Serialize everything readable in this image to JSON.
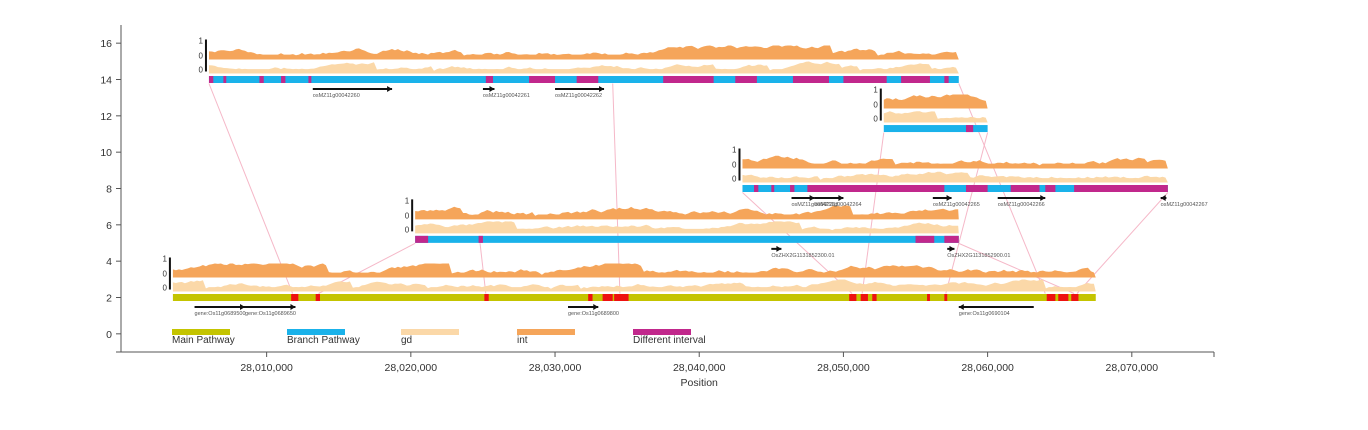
{
  "chart_data": {
    "type": "genome-pathway-track",
    "xlabel": "Position",
    "x_ticks": [
      28010000,
      28020000,
      28030000,
      28040000,
      28050000,
      28060000,
      28070000
    ],
    "x_tick_labels": [
      "28,010,000",
      "28,020,000",
      "28,030,000",
      "28,040,000",
      "28,050,000",
      "28,060,000",
      "28,070,000"
    ],
    "xlim": [
      27999900,
      28075700
    ],
    "y_ticks": [
      0,
      2,
      4,
      6,
      8,
      10,
      12,
      14,
      16
    ],
    "y_tick_labels": [
      "0",
      "2",
      "4",
      "6",
      "8",
      "10",
      "12",
      "14",
      "16"
    ],
    "ylim": [
      -1.0,
      17.0
    ],
    "colors": {
      "main": "#c4c400",
      "branch": "#1ab2ea",
      "gd": "#fbd8a8",
      "int": "#f5a55a",
      "diff_main": "#ee1111",
      "diff_branch": "#c1288c",
      "link": "#f5b8c8"
    },
    "legend": [
      {
        "label": "Main Pathway",
        "color": "#c4c400"
      },
      {
        "label": "Branch Pathway",
        "color": "#1ab2ea"
      },
      {
        "label": "gd",
        "color": "#fbd8a8"
      },
      {
        "label": "int",
        "color": "#f5a55a"
      },
      {
        "label": "Different interval",
        "color": "#c1288c"
      }
    ],
    "scale_labels": {
      "top": "1",
      "mid": "0",
      "bottom": "0"
    },
    "tracks": [
      {
        "name": "main",
        "type": "main",
        "start": 28003500,
        "end": 28067500,
        "y": 2,
        "diffs": [
          [
            28011700,
            28012200
          ],
          [
            28013400,
            28013700
          ],
          [
            28025100,
            28025400
          ],
          [
            28032300,
            28032600
          ],
          [
            28033300,
            28034000
          ],
          [
            28034100,
            28035100
          ],
          [
            28050400,
            28050900
          ],
          [
            28051200,
            28051700
          ],
          [
            28052000,
            28052300
          ],
          [
            28055800,
            28056000
          ],
          [
            28057000,
            28057200
          ],
          [
            28064100,
            28064700
          ],
          [
            28064900,
            28065600
          ],
          [
            28065800,
            28066300
          ]
        ],
        "genes": [
          {
            "label": "gene:Os11g0689500",
            "start": 28005000,
            "end": 28008500,
            "dir": 1
          },
          {
            "label": "gene:Os11g0689650",
            "start": 28008500,
            "end": 28012000,
            "dir": 1
          },
          {
            "label": "gene:Os11g0689800",
            "start": 28030900,
            "end": 28033000,
            "dir": 1
          },
          {
            "label": "gene:Os11g0690104",
            "start": 28058000,
            "end": 28063200,
            "dir": -1
          }
        ]
      },
      {
        "name": "b1",
        "type": "branch",
        "start": 28020300,
        "end": 28058000,
        "y": 5.2,
        "diffs": [
          [
            28020300,
            28021200
          ],
          [
            28024700,
            28025000
          ],
          [
            28055000,
            28056300
          ],
          [
            28057000,
            28058000
          ]
        ],
        "genes": [
          {
            "label": "OsZHX2G1131852300.01",
            "start": 28045000,
            "end": 28045700,
            "dir": 1
          },
          {
            "label": "OsZHX2G1131852900.01",
            "start": 28057200,
            "end": 28057700,
            "dir": 1
          }
        ]
      },
      {
        "name": "b2",
        "type": "branch",
        "start": 28006000,
        "end": 28058000,
        "y": 14,
        "diffs": [
          [
            28006000,
            28006300
          ],
          [
            28007000,
            28007200
          ],
          [
            28009500,
            28009800
          ],
          [
            28011000,
            28011300
          ],
          [
            28012900,
            28013100
          ],
          [
            28025200,
            28025700
          ],
          [
            28028200,
            28030000
          ],
          [
            28031500,
            28033000
          ],
          [
            28037500,
            28041000
          ],
          [
            28042500,
            28044000
          ],
          [
            28046500,
            28049000
          ],
          [
            28050000,
            28053000
          ],
          [
            28054000,
            28056000
          ],
          [
            28057000,
            28057300
          ]
        ],
        "genes": [
          {
            "label": "osMZ11g00042260",
            "start": 28013200,
            "end": 28018700,
            "dir": 1
          },
          {
            "label": "osMZ11g00042261",
            "start": 28025000,
            "end": 28025800,
            "dir": 1
          },
          {
            "label": "osMZ11g00042262",
            "start": 28030000,
            "end": 28033400,
            "dir": 1
          }
        ]
      },
      {
        "name": "b3",
        "type": "branch",
        "start": 28043000,
        "end": 28072500,
        "y": 8,
        "diffs": [
          [
            28043800,
            28044100
          ],
          [
            28045000,
            28045200
          ],
          [
            28046300,
            28046600
          ],
          [
            28047500,
            28057000
          ],
          [
            28058500,
            28060000
          ],
          [
            28061600,
            28063600
          ],
          [
            28064000,
            28064700
          ],
          [
            28066000,
            28072500
          ]
        ],
        "genes": [
          {
            "label": "osMZ11g00042263",
            "start": 28046400,
            "end": 28048000,
            "dir": 1
          },
          {
            "label": "osMZ11g00042264",
            "start": 28048000,
            "end": 28050000,
            "dir": 1
          },
          {
            "label": "osMZ11g00042265",
            "start": 28056200,
            "end": 28057500,
            "dir": 1
          },
          {
            "label": "osMZ11g00042266",
            "start": 28060700,
            "end": 28064000,
            "dir": 1
          },
          {
            "label": "osMZ11g00042267",
            "start": 28072000,
            "end": 28072400,
            "dir": -1
          }
        ]
      },
      {
        "name": "b4",
        "type": "branch",
        "start": 28052800,
        "end": 28060000,
        "y": 11.3,
        "diffs": [
          [
            28058500,
            28059000
          ]
        ],
        "genes": []
      }
    ]
  }
}
